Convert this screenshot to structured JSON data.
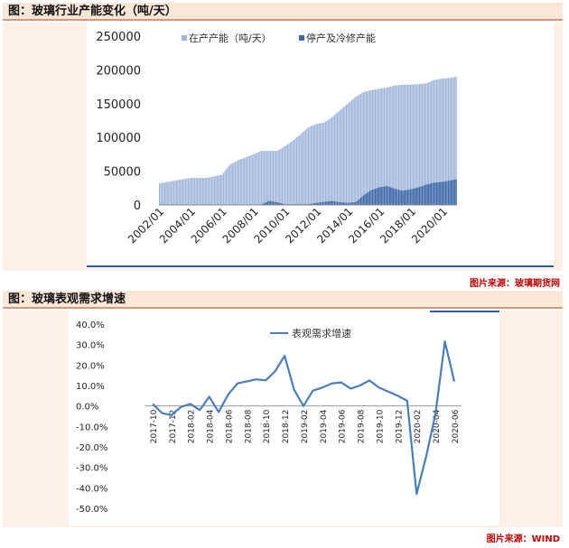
{
  "figures": [
    {
      "title": "图：玻璃行业产能变化（吨/天）",
      "source": "图片来源：玻璃期货网"
    },
    {
      "title": "图：玻璃表观需求增速",
      "source": "图片来源：WIND"
    }
  ],
  "chart_data": [
    {
      "type": "area",
      "title": "",
      "ylim": [
        0,
        250000
      ],
      "yticks": [
        "250000",
        "200000",
        "150000",
        "100000",
        "50000",
        "0"
      ],
      "ytick_values": [
        250000,
        200000,
        150000,
        100000,
        50000,
        0
      ],
      "xticks": [
        "2002/01",
        "2004/01",
        "2006/01",
        "2008/01",
        "2010/01",
        "2012/01",
        "2014/01",
        "2016/01",
        "2018/01",
        "2020/01"
      ],
      "x_start": "2002/01",
      "x_end": "2020/12",
      "legend_position": "top",
      "series": [
        {
          "name": "在产产能（吨/天）",
          "color": "#9fb5d9",
          "points": [
            [
              "2002/01",
              32000
            ],
            [
              "2003/01",
              36000
            ],
            [
              "2004/01",
              40000
            ],
            [
              "2005/01",
              40000
            ],
            [
              "2006/01",
              45000
            ],
            [
              "2006/07",
              60000
            ],
            [
              "2007/01",
              66000
            ],
            [
              "2008/01",
              75000
            ],
            [
              "2008/07",
              80000
            ],
            [
              "2009/07",
              80000
            ],
            [
              "2010/01",
              87000
            ],
            [
              "2010/07",
              95000
            ],
            [
              "2011/01",
              105000
            ],
            [
              "2011/07",
              115000
            ],
            [
              "2012/01",
              120000
            ],
            [
              "2012/07",
              122000
            ],
            [
              "2013/01",
              130000
            ],
            [
              "2013/07",
              140000
            ],
            [
              "2014/01",
              150000
            ],
            [
              "2014/07",
              160000
            ],
            [
              "2015/01",
              167000
            ],
            [
              "2015/07",
              170000
            ],
            [
              "2016/01",
              172000
            ],
            [
              "2016/07",
              174000
            ],
            [
              "2017/01",
              177000
            ],
            [
              "2017/07",
              178000
            ],
            [
              "2018/01",
              178000
            ],
            [
              "2018/07",
              179000
            ],
            [
              "2019/01",
              180000
            ],
            [
              "2019/07",
              185000
            ],
            [
              "2020/01",
              187000
            ],
            [
              "2020/07",
              188000
            ],
            [
              "2020/12",
              190000
            ]
          ]
        },
        {
          "name": "停产及冷修产能",
          "color": "#3e6aa8",
          "points": [
            [
              "2002/01",
              0
            ],
            [
              "2008/06",
              0
            ],
            [
              "2009/01",
              6000
            ],
            [
              "2009/07",
              4000
            ],
            [
              "2010/01",
              1000
            ],
            [
              "2011/07",
              1000
            ],
            [
              "2012/01",
              3000
            ],
            [
              "2013/01",
              6000
            ],
            [
              "2013/07",
              4000
            ],
            [
              "2014/01",
              3000
            ],
            [
              "2014/07",
              4000
            ],
            [
              "2015/01",
              14000
            ],
            [
              "2015/07",
              22000
            ],
            [
              "2016/01",
              26000
            ],
            [
              "2016/07",
              28000
            ],
            [
              "2017/01",
              24000
            ],
            [
              "2017/07",
              21000
            ],
            [
              "2018/01",
              23000
            ],
            [
              "2018/07",
              26000
            ],
            [
              "2019/01",
              30000
            ],
            [
              "2019/07",
              33000
            ],
            [
              "2020/01",
              34000
            ],
            [
              "2020/07",
              36000
            ],
            [
              "2020/12",
              38000
            ]
          ]
        }
      ]
    },
    {
      "type": "line",
      "title": "",
      "ylim": [
        -50,
        40
      ],
      "yticks": [
        "40.0%",
        "30.0%",
        "20.0%",
        "10.0%",
        "0.0%",
        "-10.0%",
        "-20.0%",
        "-30.0%",
        "-40.0%",
        "-50.0%"
      ],
      "ytick_values": [
        40,
        30,
        20,
        10,
        0,
        -10,
        -20,
        -30,
        -40,
        -50
      ],
      "xticks": [
        "2017-10",
        "2017-12",
        "2018-02",
        "2018-04",
        "2018-06",
        "2018-08",
        "2018-10",
        "2018-12",
        "2019-02",
        "2019-04",
        "2019-06",
        "2019-08",
        "2019-10",
        "2019-12",
        "2020-02",
        "2020-04",
        "2020-06"
      ],
      "categories": [
        "2017-10",
        "2017-11",
        "2017-12",
        "2018-01",
        "2018-02",
        "2018-03",
        "2018-04",
        "2018-05",
        "2018-06",
        "2018-07",
        "2018-08",
        "2018-09",
        "2018-10",
        "2018-11",
        "2018-12",
        "2019-01",
        "2019-02",
        "2019-03",
        "2019-04",
        "2019-05",
        "2019-06",
        "2019-07",
        "2019-08",
        "2019-09",
        "2019-10",
        "2019-11",
        "2019-12",
        "2020-01",
        "2020-02",
        "2020-03",
        "2020-04",
        "2020-05",
        "2020-06"
      ],
      "legend_position": "top",
      "series": [
        {
          "name": "表观需求增速",
          "color": "#4a7ebb",
          "values": [
            1.0,
            -3.5,
            -4.5,
            -0.5,
            1.0,
            -2.0,
            4.5,
            -3.0,
            5.5,
            11.0,
            12.0,
            13.0,
            12.5,
            17.0,
            24.5,
            8.0,
            0.0,
            7.5,
            9.0,
            11.0,
            11.5,
            8.5,
            10.0,
            12.5,
            9.0,
            7.0,
            5.0,
            2.5,
            -43.0,
            -25.0,
            -4.0,
            31.5,
            12.0
          ]
        }
      ]
    }
  ]
}
